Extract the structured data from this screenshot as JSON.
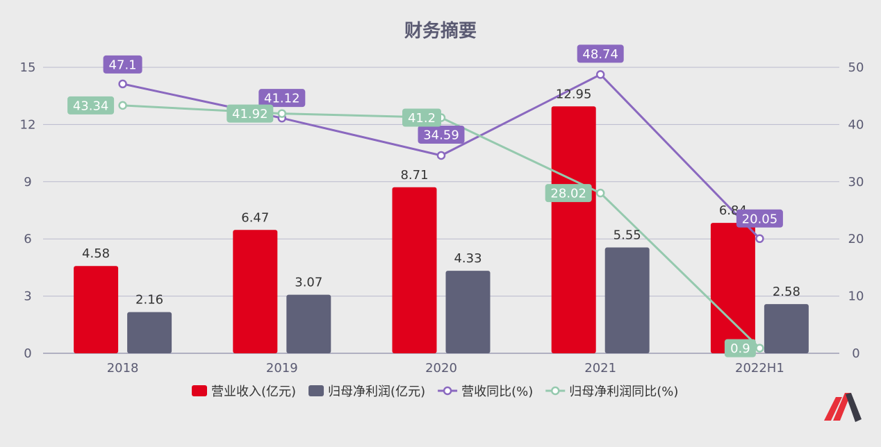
{
  "chart_data": {
    "type": "bar",
    "title": "财务摘要",
    "categories": [
      "2018",
      "2019",
      "2020",
      "2021",
      "2022H1"
    ],
    "y_left": {
      "ticks": [
        "0",
        "3",
        "6",
        "9",
        "12",
        "15"
      ],
      "range": [
        0,
        15
      ]
    },
    "y_right": {
      "ticks": [
        "0",
        "10",
        "20",
        "30",
        "40",
        "50"
      ],
      "range": [
        0,
        50
      ]
    },
    "series": [
      {
        "name": "营业收入(亿元)",
        "kind": "bar",
        "axis": "left",
        "color": "#e0001b",
        "values": [
          4.58,
          6.47,
          8.71,
          12.95,
          6.84
        ],
        "labels": [
          "4.58",
          "6.47",
          "8.71",
          "12.95",
          "6.84"
        ]
      },
      {
        "name": "归母净利润(亿元)",
        "kind": "bar",
        "axis": "left",
        "color": "#5f6179",
        "values": [
          2.16,
          3.07,
          4.33,
          5.55,
          2.58
        ],
        "labels": [
          "2.16",
          "3.07",
          "4.33",
          "5.55",
          "2.58"
        ]
      },
      {
        "name": "营收同比(%)",
        "kind": "line",
        "axis": "right",
        "color": "#8a68bf",
        "values": [
          47.1,
          41.12,
          34.59,
          48.74,
          20.05
        ],
        "labels": [
          "47.1",
          "41.12",
          "34.59",
          "48.74",
          "20.05"
        ]
      },
      {
        "name": "归母净利润同比(%)",
        "kind": "line",
        "axis": "right",
        "color": "#95c9ae",
        "values": [
          43.34,
          41.92,
          41.2,
          28.02,
          0.9
        ],
        "labels": [
          "43.34",
          "41.92",
          "41.2",
          "28.02",
          "0.9"
        ]
      }
    ],
    "grid": true,
    "legend": "bottom"
  }
}
